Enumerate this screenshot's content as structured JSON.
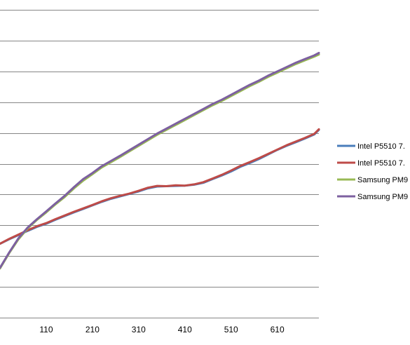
{
  "chart_data": {
    "type": "line",
    "title": "",
    "xlabel": "",
    "ylabel": "",
    "x_ticks": [
      110,
      210,
      310,
      410,
      510,
      610
    ],
    "xlim": [
      10,
      700
    ],
    "ylim": [
      0,
      10
    ],
    "grid": true,
    "legend_position": "right",
    "colors": {
      "gridline": "#868686",
      "axis_text": "#000000"
    },
    "series": [
      {
        "name": "Intel P5510 7.",
        "color": "#4a7ebb",
        "x": [
          10,
          30,
          50,
          70,
          90,
          110,
          130,
          150,
          170,
          190,
          210,
          230,
          250,
          270,
          290,
          310,
          330,
          350,
          370,
          390,
          410,
          430,
          450,
          470,
          490,
          510,
          530,
          550,
          570,
          590,
          610,
          630,
          650,
          670,
          690,
          700
        ],
        "y": [
          2.4,
          2.55,
          2.68,
          2.82,
          2.95,
          3.05,
          3.18,
          3.3,
          3.42,
          3.53,
          3.65,
          3.76,
          3.86,
          3.94,
          4.02,
          4.1,
          4.2,
          4.26,
          4.27,
          4.28,
          4.29,
          4.32,
          4.38,
          4.5,
          4.62,
          4.75,
          4.9,
          5.02,
          5.15,
          5.3,
          5.45,
          5.58,
          5.7,
          5.82,
          5.95,
          6.1
        ]
      },
      {
        "name": "Intel P5510 7.",
        "color": "#be4b48",
        "x": [
          10,
          30,
          50,
          70,
          90,
          110,
          130,
          150,
          170,
          190,
          210,
          230,
          250,
          270,
          290,
          310,
          330,
          350,
          370,
          390,
          410,
          430,
          450,
          470,
          490,
          510,
          530,
          550,
          570,
          590,
          610,
          630,
          650,
          670,
          690,
          700
        ],
        "y": [
          2.4,
          2.56,
          2.7,
          2.84,
          2.97,
          3.07,
          3.2,
          3.32,
          3.44,
          3.55,
          3.66,
          3.78,
          3.88,
          3.96,
          4.03,
          4.12,
          4.22,
          4.28,
          4.27,
          4.3,
          4.29,
          4.33,
          4.4,
          4.52,
          4.64,
          4.78,
          4.93,
          5.05,
          5.18,
          5.32,
          5.46,
          5.6,
          5.72,
          5.84,
          5.97,
          6.12
        ]
      },
      {
        "name": "Samsung PM9",
        "color": "#98b954",
        "x": [
          10,
          30,
          50,
          70,
          90,
          110,
          130,
          150,
          170,
          190,
          210,
          230,
          250,
          270,
          290,
          310,
          330,
          350,
          370,
          390,
          410,
          430,
          450,
          470,
          490,
          510,
          530,
          550,
          570,
          590,
          610,
          630,
          650,
          670,
          690,
          700
        ],
        "y": [
          1.6,
          2.1,
          2.55,
          2.9,
          3.18,
          3.42,
          3.68,
          3.92,
          4.2,
          4.45,
          4.66,
          4.88,
          5.05,
          5.22,
          5.4,
          5.58,
          5.76,
          5.94,
          6.1,
          6.26,
          6.42,
          6.58,
          6.74,
          6.9,
          7.04,
          7.2,
          7.36,
          7.52,
          7.66,
          7.82,
          7.96,
          8.1,
          8.24,
          8.36,
          8.48,
          8.55
        ]
      },
      {
        "name": "Samsung PM9",
        "color": "#7d60a0",
        "x": [
          10,
          30,
          50,
          70,
          90,
          110,
          130,
          150,
          170,
          190,
          210,
          230,
          250,
          270,
          290,
          310,
          330,
          350,
          370,
          390,
          410,
          430,
          450,
          470,
          490,
          510,
          530,
          550,
          570,
          590,
          610,
          630,
          650,
          670,
          690,
          700
        ],
        "y": [
          1.62,
          2.12,
          2.58,
          2.93,
          3.2,
          3.45,
          3.71,
          3.96,
          4.24,
          4.5,
          4.7,
          4.92,
          5.09,
          5.26,
          5.44,
          5.62,
          5.8,
          5.98,
          6.14,
          6.3,
          6.46,
          6.62,
          6.78,
          6.94,
          7.08,
          7.24,
          7.4,
          7.56,
          7.7,
          7.86,
          8.0,
          8.14,
          8.28,
          8.4,
          8.52,
          8.6
        ]
      }
    ]
  }
}
